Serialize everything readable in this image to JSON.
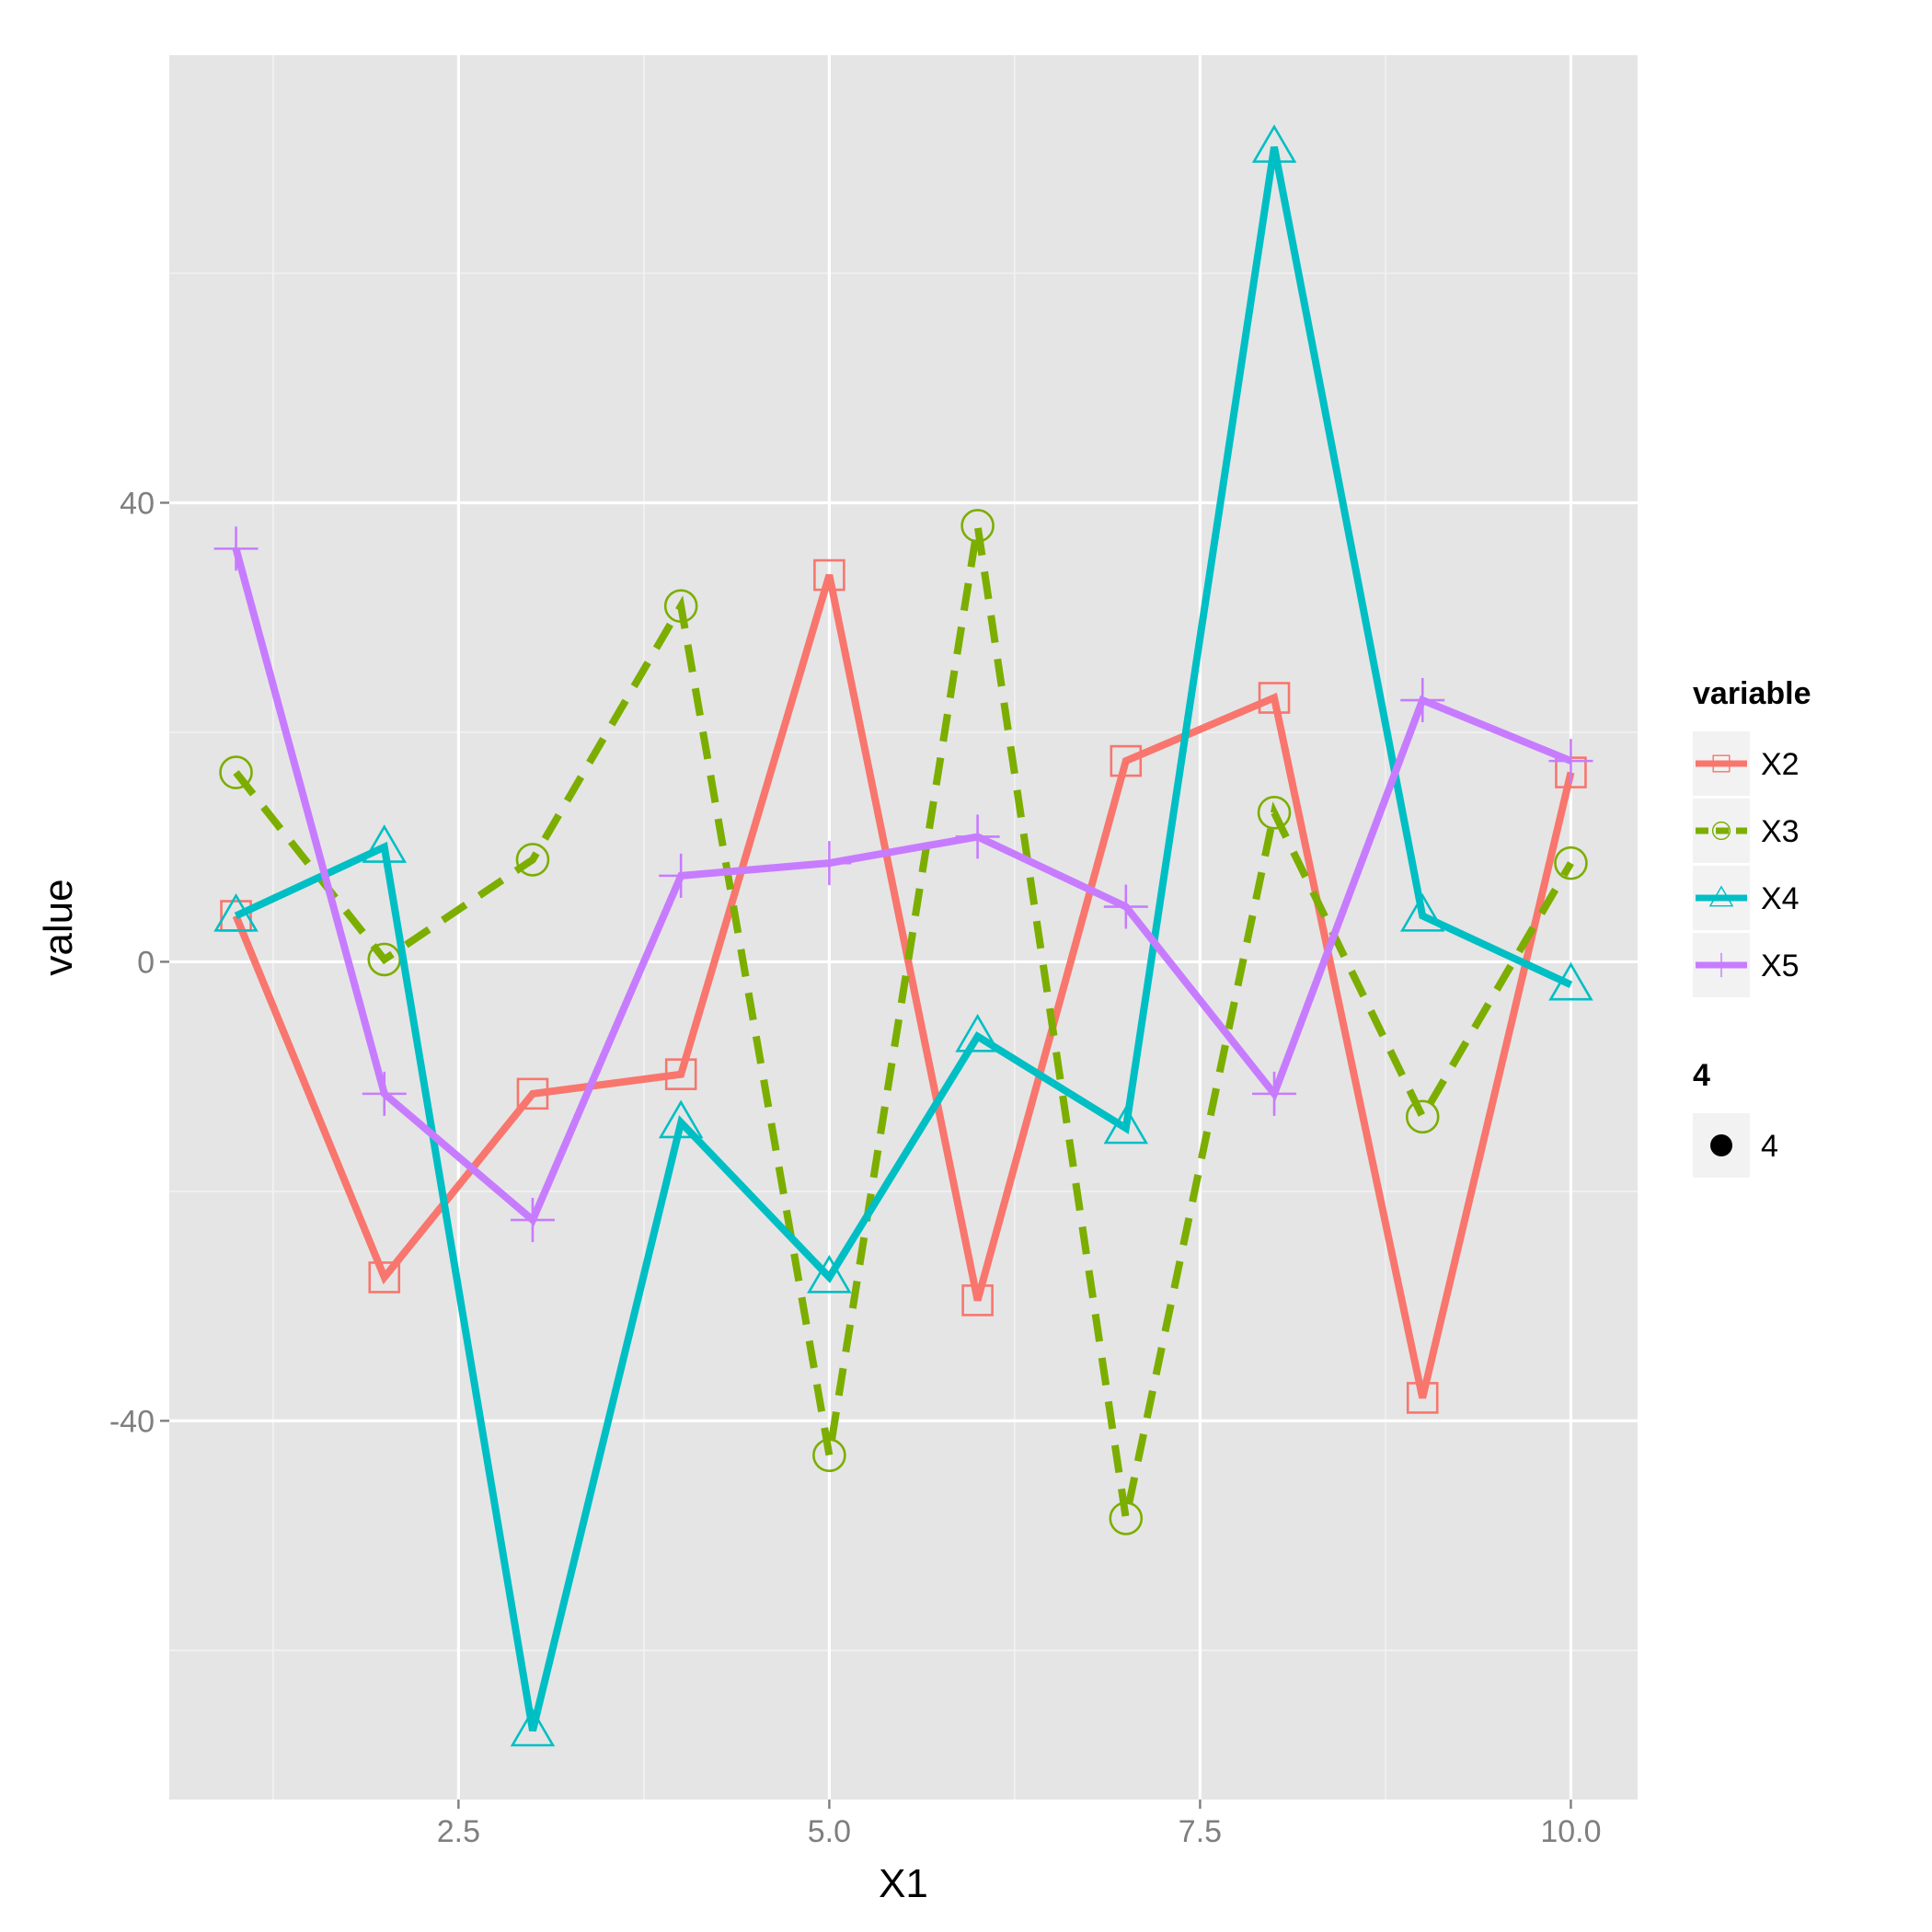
{
  "chart_data": {
    "type": "line",
    "title": "",
    "xlabel": "X1",
    "ylabel": "value",
    "xlim": [
      0.55,
      10.45
    ],
    "ylim": [
      -73,
      79
    ],
    "x_ticks": [
      2.5,
      5.0,
      7.5,
      10.0
    ],
    "x_tick_labels": [
      "2.5",
      "5.0",
      "7.5",
      "10.0"
    ],
    "y_ticks": [
      -40,
      0,
      40
    ],
    "y_tick_labels": [
      "-40",
      "0",
      "40"
    ],
    "grid": true,
    "legend_position": "right",
    "x": [
      1,
      2,
      3,
      4,
      5,
      6,
      7,
      8,
      9,
      10
    ],
    "series": [
      {
        "name": "X2",
        "color": "#F8766D",
        "dash": "solid",
        "marker": "square",
        "values": [
          4,
          -27.5,
          -11.5,
          -9.8,
          33.7,
          -29.5,
          17.5,
          23,
          -38,
          16.5
        ]
      },
      {
        "name": "X3",
        "color": "#7CAE00",
        "dash": "dashed",
        "marker": "circle",
        "values": [
          16.5,
          0.2,
          8.9,
          31,
          -43,
          38,
          -48.5,
          13,
          -13.5,
          8.6
        ]
      },
      {
        "name": "X4",
        "color": "#00BFC4",
        "dash": "solid",
        "marker": "triangle",
        "values": [
          4,
          10,
          -67,
          -14,
          -27.5,
          -6.5,
          -14.5,
          71,
          4,
          -2
        ]
      },
      {
        "name": "X5",
        "color": "#C77CFF",
        "dash": "solid",
        "marker": "plus",
        "values": [
          36,
          -11.5,
          -22.5,
          7.5,
          8.6,
          10.9,
          4.8,
          -11.5,
          22.8,
          17.5
        ]
      }
    ],
    "legends": [
      {
        "title": "variable",
        "entries": [
          "X2",
          "X3",
          "X4",
          "X5"
        ]
      },
      {
        "title": "4",
        "entries": [
          "4"
        ]
      }
    ]
  }
}
